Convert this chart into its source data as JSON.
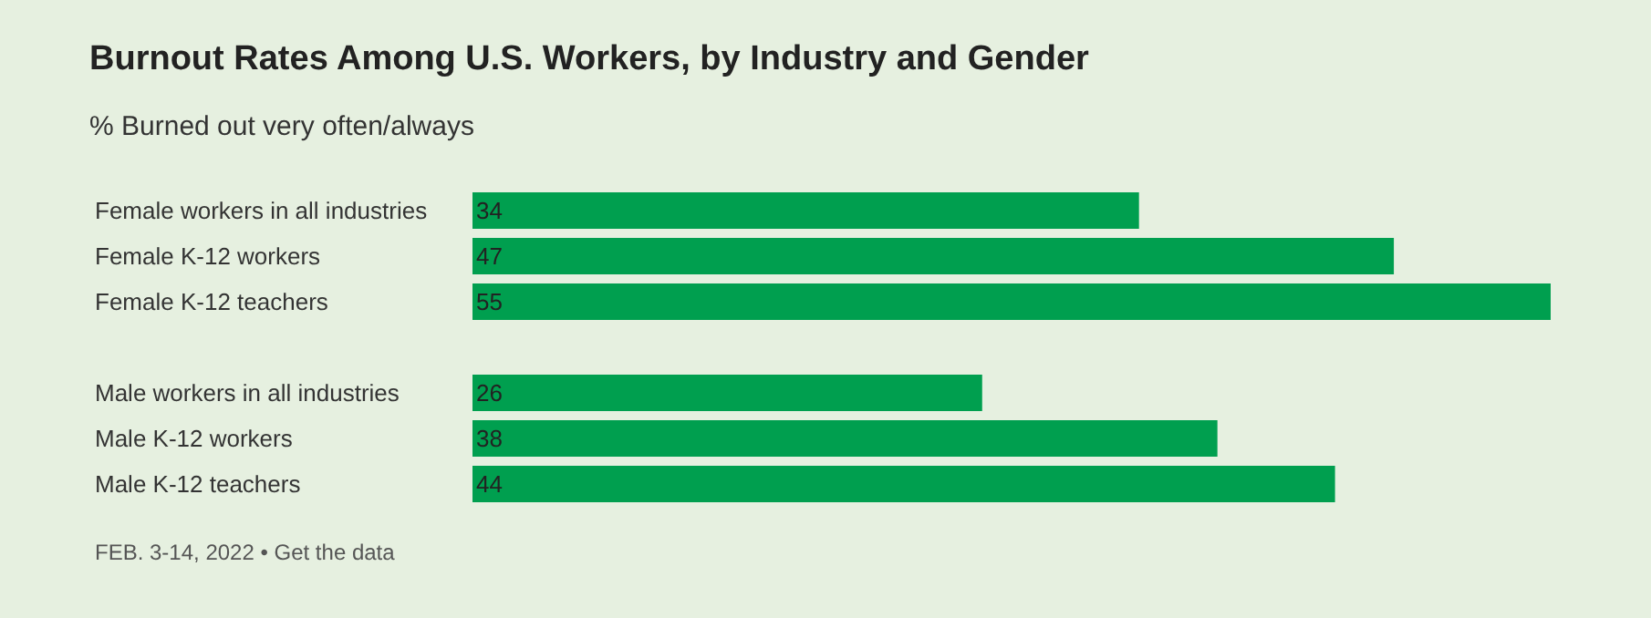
{
  "chart_data": {
    "type": "bar",
    "orientation": "horizontal",
    "title": "Burnout Rates Among U.S. Workers, by Industry and Gender",
    "subtitle": "% Burned out very often/always",
    "categories": [
      "Female workers in all industries",
      "Female K-12 workers",
      "Female K-12 teachers",
      null,
      "Male workers in all industries",
      "Male K-12 workers",
      "Male K-12 teachers"
    ],
    "values": [
      34,
      47,
      55,
      null,
      26,
      38,
      44
    ],
    "color": "#009f4f",
    "data_labels": true,
    "annotations": [
      "FEB. 3-14, 2022 • Get the data"
    ]
  }
}
